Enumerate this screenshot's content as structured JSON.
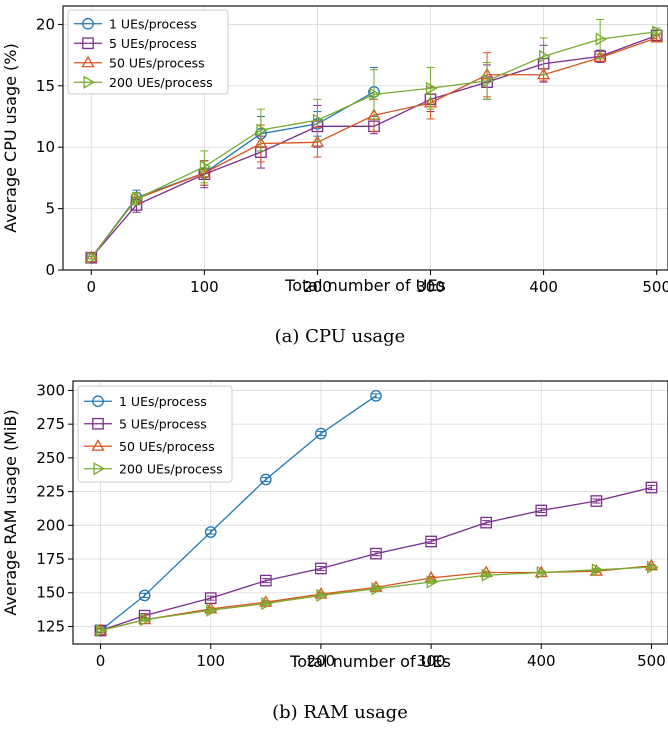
{
  "chart_data": [
    {
      "type": "line",
      "caption": "(a) CPU usage",
      "xlabel": "Total number of UEs",
      "ylabel": "Average CPU usage (%)",
      "xlim": [
        -25,
        510
      ],
      "ylim": [
        0,
        21.5
      ],
      "xticks": [
        0,
        100,
        200,
        300,
        400,
        500
      ],
      "yticks": [
        0,
        5,
        10,
        15,
        20
      ],
      "grid": true,
      "legend_position": "top-left",
      "series": [
        {
          "name": "1  UEs/process",
          "color": "#1f77b4",
          "marker": "circle",
          "x": [
            0,
            40,
            100,
            150,
            200,
            250
          ],
          "y": [
            1.0,
            5.9,
            7.9,
            11.1,
            11.9,
            14.5
          ],
          "err": [
            0.1,
            0.6,
            1.0,
            1.4,
            1.0,
            2.0
          ]
        },
        {
          "name": "5  UEs/process",
          "color": "#7b2d8e",
          "marker": "square",
          "x": [
            0,
            40,
            100,
            150,
            200,
            250,
            300,
            350,
            400,
            450,
            500
          ],
          "y": [
            1.0,
            5.3,
            7.8,
            9.6,
            11.7,
            11.7,
            13.9,
            15.3,
            16.8,
            17.4,
            19.1
          ],
          "err": [
            0.1,
            0.6,
            1.1,
            1.3,
            1.7,
            0.6,
            1.0,
            1.4,
            1.5,
            0.5,
            0.4
          ]
        },
        {
          "name": "50  UEs/process",
          "color": "#d9541e",
          "marker": "triangle-up",
          "x": [
            0,
            40,
            100,
            150,
            200,
            250,
            300,
            350,
            400,
            450,
            500
          ],
          "y": [
            1.0,
            5.8,
            7.9,
            10.3,
            10.4,
            12.6,
            13.6,
            15.9,
            15.9,
            17.3,
            18.9
          ],
          "err": [
            0.1,
            0.5,
            1.0,
            1.5,
            1.2,
            1.3,
            1.3,
            1.8,
            0.5,
            0.3,
            0.3
          ]
        },
        {
          "name": "200  UEs/process",
          "color": "#77ac30",
          "marker": "triangle-right",
          "x": [
            0,
            40,
            100,
            150,
            200,
            250,
            300,
            350,
            400,
            450,
            500
          ],
          "y": [
            1.0,
            5.8,
            8.4,
            11.4,
            12.2,
            14.3,
            14.8,
            15.4,
            17.4,
            18.8,
            19.4
          ],
          "err": [
            0.1,
            0.5,
            1.3,
            1.7,
            1.7,
            2.0,
            1.7,
            1.5,
            1.5,
            1.6,
            0.3
          ]
        }
      ]
    },
    {
      "type": "line",
      "caption": "(b) RAM usage",
      "xlabel": "Total number of UEs",
      "ylabel": "Average RAM usage (MiB)",
      "xlim": [
        -25,
        515
      ],
      "ylim": [
        112,
        307
      ],
      "xticks": [
        0,
        100,
        200,
        300,
        400,
        500
      ],
      "yticks": [
        125,
        150,
        175,
        200,
        225,
        250,
        275,
        300
      ],
      "grid": true,
      "legend_position": "top-left",
      "series": [
        {
          "name": "1  UEs/process",
          "color": "#1f77b4",
          "marker": "circle",
          "x": [
            0,
            40,
            100,
            150,
            200,
            250
          ],
          "y": [
            122,
            148,
            195,
            234,
            268,
            296
          ],
          "err": [
            1.5,
            1.5,
            1.5,
            1.5,
            1.5,
            1.5
          ]
        },
        {
          "name": "5  UEs/process",
          "color": "#7b2d8e",
          "marker": "square",
          "x": [
            0,
            40,
            100,
            150,
            200,
            250,
            300,
            350,
            400,
            450,
            500
          ],
          "y": [
            122,
            133,
            146,
            159,
            168,
            179,
            188,
            202,
            211,
            218,
            228
          ],
          "err": [
            1.5,
            1.5,
            1.5,
            1.5,
            1.5,
            1.5,
            1.5,
            1.5,
            1.5,
            1.5,
            1.5
          ]
        },
        {
          "name": "50  UEs/process",
          "color": "#d9541e",
          "marker": "triangle-up",
          "x": [
            0,
            40,
            100,
            150,
            200,
            250,
            300,
            350,
            400,
            450,
            500
          ],
          "y": [
            122,
            130,
            138,
            143,
            149,
            154,
            161,
            165,
            165,
            166,
            170
          ],
          "err": [
            1,
            1,
            1,
            1,
            1,
            1,
            1,
            1,
            1,
            1,
            1
          ]
        },
        {
          "name": "200  UEs/process",
          "color": "#77ac30",
          "marker": "triangle-right",
          "x": [
            0,
            40,
            100,
            150,
            200,
            250,
            300,
            350,
            400,
            450,
            500
          ],
          "y": [
            122,
            130,
            137,
            142,
            148,
            153,
            158,
            163,
            165,
            167,
            169
          ],
          "err": [
            1,
            1,
            1,
            1,
            1,
            1,
            1,
            1,
            1,
            1,
            1
          ]
        }
      ]
    }
  ]
}
